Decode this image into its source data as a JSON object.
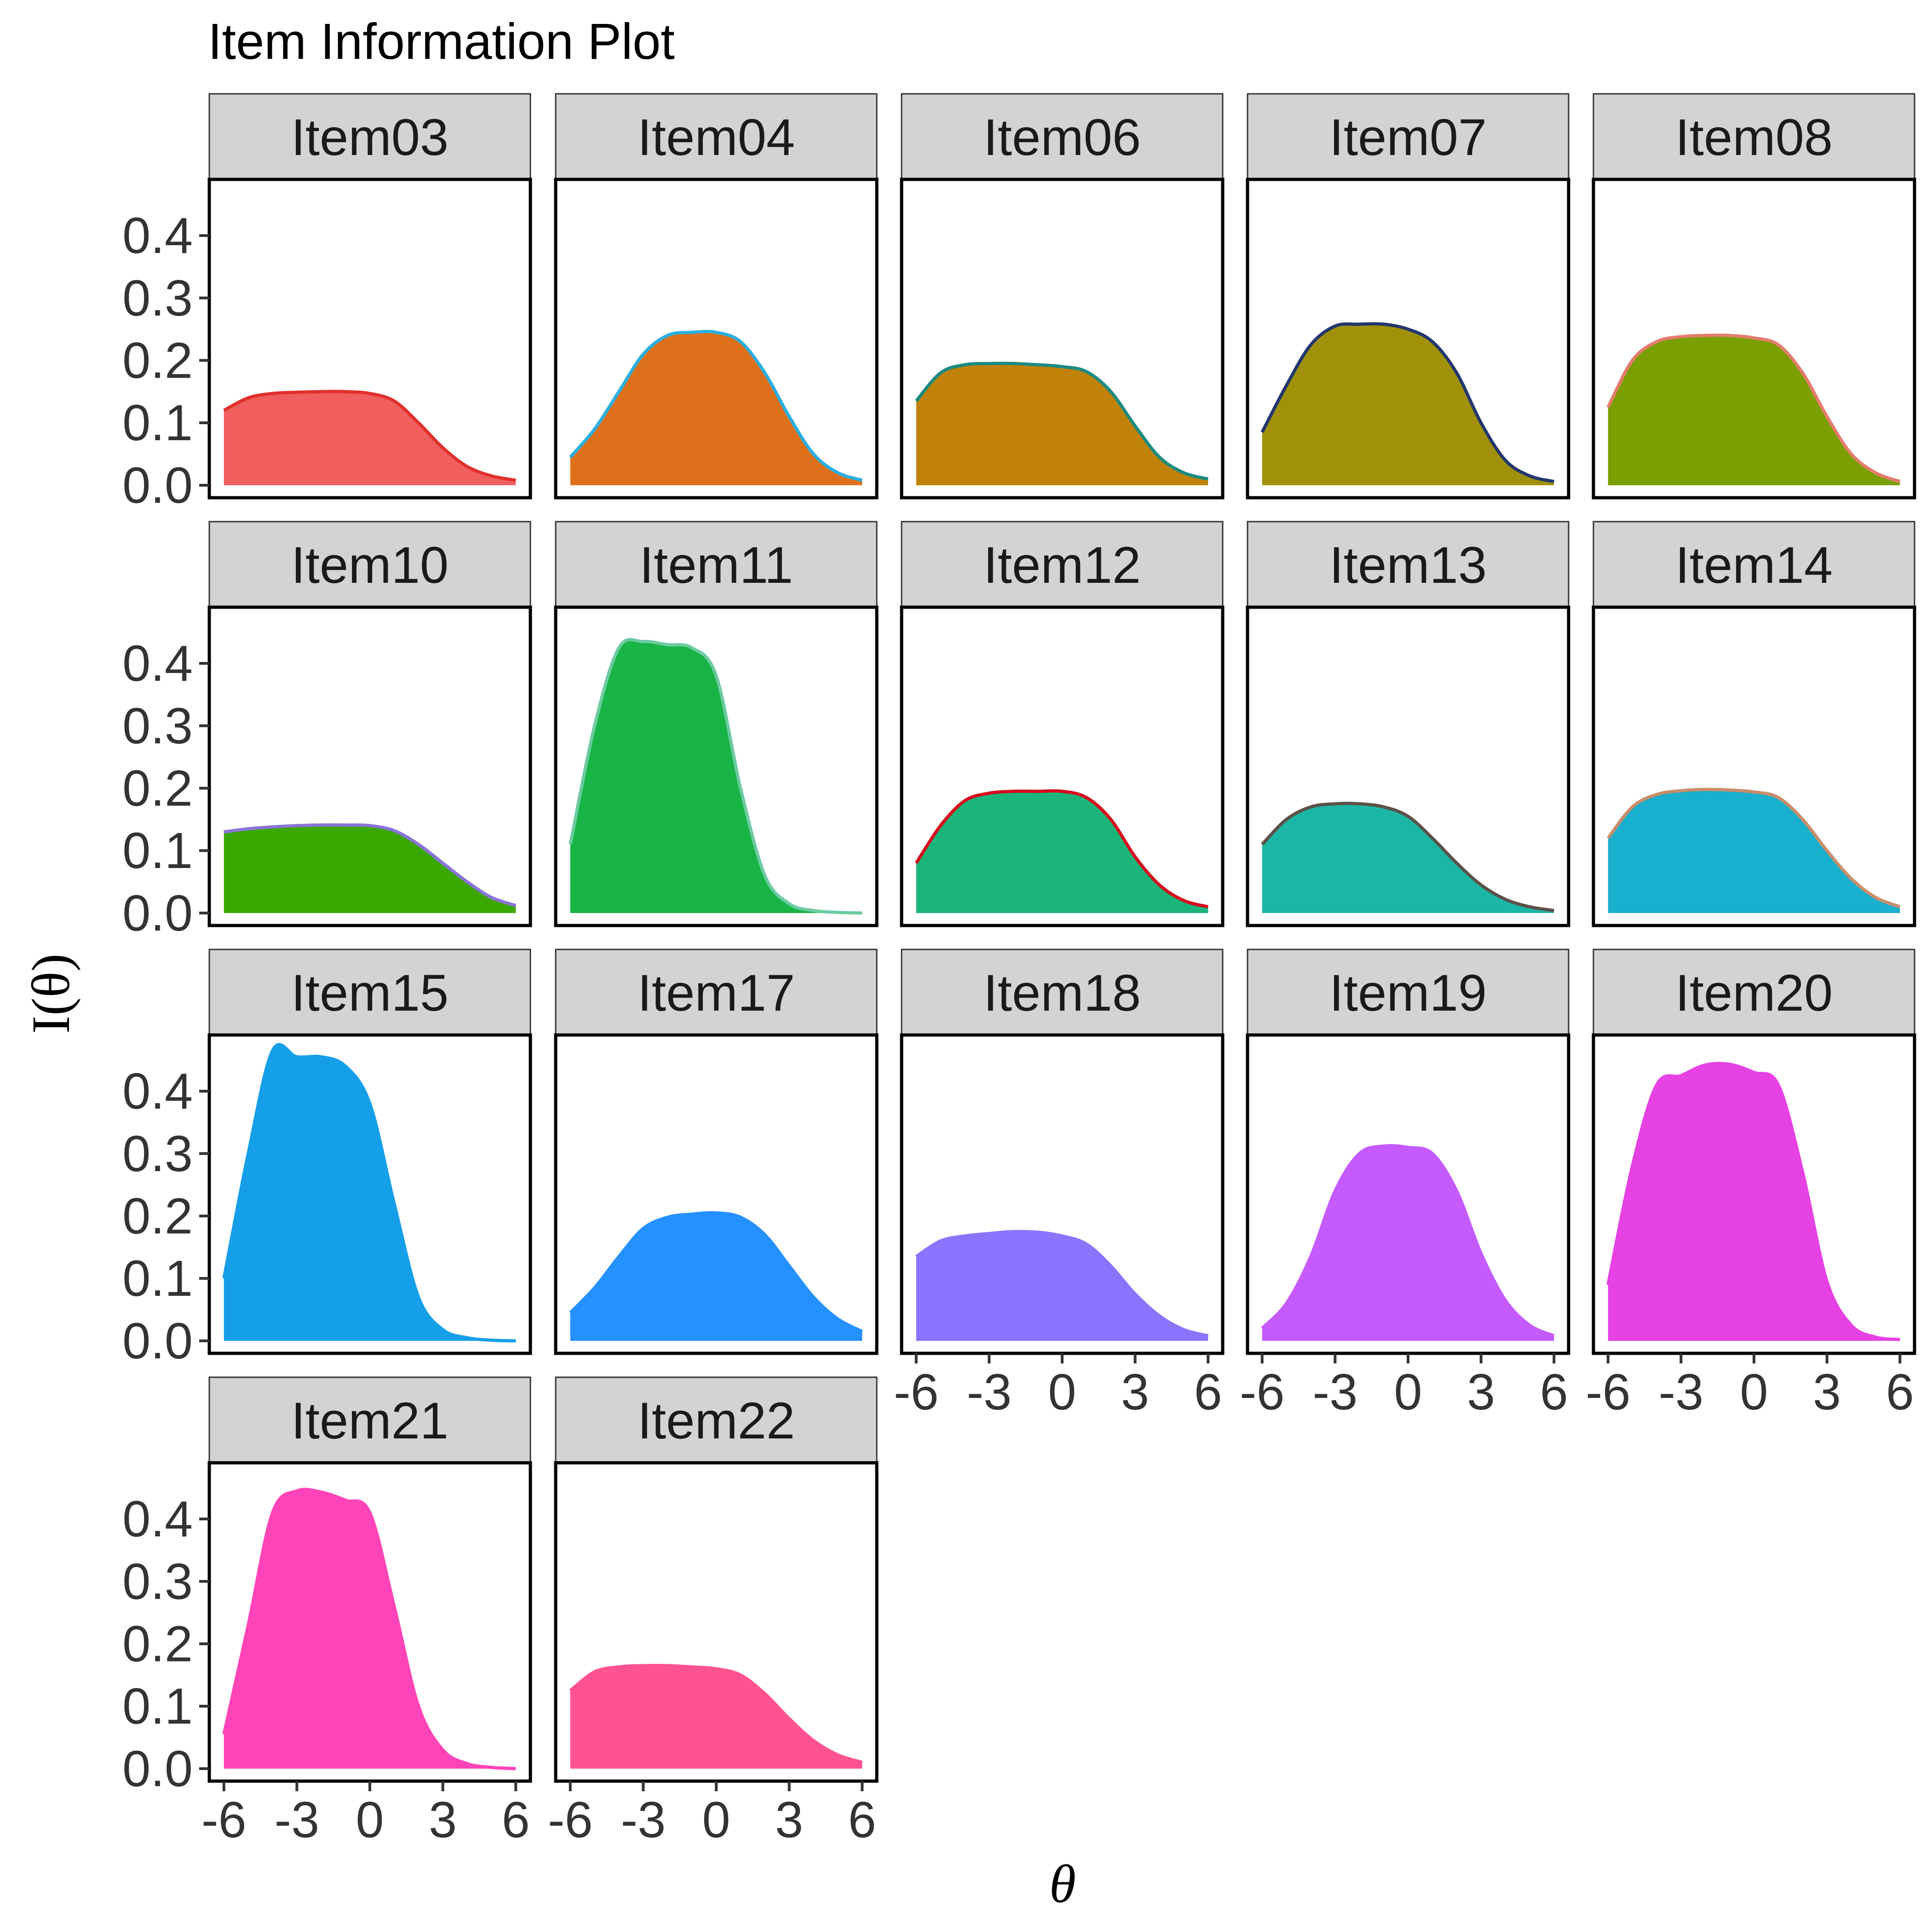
{
  "chart_data": {
    "type": "area",
    "title": "Item Information Plot",
    "xlabel": "θ",
    "ylabel": "I(θ)",
    "x_ticks": [
      -6,
      -3,
      0,
      3,
      6
    ],
    "x_tick_labels": [
      "-6",
      "-3",
      "0",
      "3",
      "6"
    ],
    "y_ticks": [
      0.0,
      0.1,
      0.2,
      0.3,
      0.4
    ],
    "y_tick_labels": [
      "0.0",
      "0.1",
      "0.2",
      "0.3",
      "0.4"
    ],
    "xlim": [
      -6.6,
      6.6
    ],
    "ylim": [
      -0.02,
      0.49
    ],
    "grid": false,
    "legend": "none",
    "facet_layout": {
      "rows": 4,
      "cols": 5
    },
    "x": [
      -6,
      -5,
      -4,
      -3,
      -2,
      -1,
      0,
      1,
      2,
      3,
      4,
      5,
      6
    ],
    "panels": [
      {
        "name": "Item03",
        "fill": "#F05E5E",
        "line": "#E0302C",
        "values": [
          0.12,
          0.14,
          0.147,
          0.149,
          0.15,
          0.15,
          0.147,
          0.135,
          0.1,
          0.06,
          0.03,
          0.015,
          0.008
        ]
      },
      {
        "name": "Item04",
        "fill": "#DE701C",
        "line": "#2AB0E0",
        "values": [
          0.045,
          0.09,
          0.15,
          0.21,
          0.24,
          0.245,
          0.245,
          0.23,
          0.18,
          0.11,
          0.05,
          0.02,
          0.008
        ]
      },
      {
        "name": "Item06",
        "fill": "#C08208",
        "line": "#1A8A82",
        "values": [
          0.135,
          0.18,
          0.193,
          0.195,
          0.195,
          0.193,
          0.19,
          0.182,
          0.15,
          0.095,
          0.045,
          0.02,
          0.01
        ]
      },
      {
        "name": "Item07",
        "fill": "#A09108",
        "line": "#23376E",
        "values": [
          0.085,
          0.16,
          0.225,
          0.255,
          0.258,
          0.258,
          0.25,
          0.23,
          0.18,
          0.1,
          0.04,
          0.015,
          0.006
        ]
      },
      {
        "name": "Item08",
        "fill": "#7A9F00",
        "line": "#E47C6C",
        "values": [
          0.125,
          0.2,
          0.23,
          0.238,
          0.24,
          0.24,
          0.236,
          0.225,
          0.18,
          0.11,
          0.05,
          0.02,
          0.006
        ]
      },
      {
        "name": "Item10",
        "fill": "#3BA801",
        "line": "#8B73D8",
        "values": [
          0.13,
          0.135,
          0.138,
          0.14,
          0.141,
          0.141,
          0.14,
          0.132,
          0.11,
          0.08,
          0.05,
          0.025,
          0.012
        ]
      },
      {
        "name": "Item11",
        "fill": "#18B445",
        "line": "#6DCBA2",
        "values": [
          0.11,
          0.3,
          0.425,
          0.435,
          0.43,
          0.425,
          0.38,
          0.2,
          0.06,
          0.015,
          0.004,
          0.001,
          0.0
        ]
      },
      {
        "name": "Item12",
        "fill": "#1BB57B",
        "line": "#D6081C",
        "values": [
          0.08,
          0.14,
          0.18,
          0.192,
          0.195,
          0.195,
          0.195,
          0.185,
          0.15,
          0.09,
          0.045,
          0.02,
          0.01
        ]
      },
      {
        "name": "Item13",
        "fill": "#1BB7A6",
        "line": "#5C5148",
        "values": [
          0.11,
          0.15,
          0.17,
          0.175,
          0.175,
          0.17,
          0.155,
          0.12,
          0.08,
          0.045,
          0.022,
          0.01,
          0.004
        ]
      },
      {
        "name": "Item14",
        "fill": "#19AFCF",
        "line": "#C88E6A",
        "values": [
          0.12,
          0.17,
          0.19,
          0.196,
          0.198,
          0.197,
          0.194,
          0.185,
          0.15,
          0.1,
          0.055,
          0.025,
          0.01
        ]
      },
      {
        "name": "Item15",
        "fill": "#159FE9",
        "line": "#159FE9",
        "values": [
          0.1,
          0.3,
          0.465,
          0.455,
          0.455,
          0.44,
          0.38,
          0.22,
          0.07,
          0.018,
          0.005,
          0.001,
          0.0
        ]
      },
      {
        "name": "Item17",
        "fill": "#2590FF",
        "line": "#2590FF",
        "values": [
          0.045,
          0.085,
          0.135,
          0.18,
          0.198,
          0.203,
          0.205,
          0.198,
          0.17,
          0.12,
          0.07,
          0.035,
          0.015
        ]
      },
      {
        "name": "Item18",
        "fill": "#8874FD",
        "line": "#8874FD",
        "values": [
          0.135,
          0.16,
          0.168,
          0.172,
          0.175,
          0.174,
          0.168,
          0.155,
          0.12,
          0.075,
          0.04,
          0.018,
          0.008
        ]
      },
      {
        "name": "Item19",
        "fill": "#C55AFE",
        "line": "#C55AFE",
        "values": [
          0.02,
          0.06,
          0.135,
          0.24,
          0.3,
          0.312,
          0.31,
          0.3,
          0.24,
          0.14,
          0.065,
          0.025,
          0.008
        ]
      },
      {
        "name": "Item20",
        "fill": "#E541E3",
        "line": "#E541E3",
        "values": [
          0.09,
          0.28,
          0.41,
          0.425,
          0.442,
          0.443,
          0.43,
          0.41,
          0.27,
          0.095,
          0.025,
          0.006,
          0.002
        ]
      },
      {
        "name": "Item21",
        "fill": "#FF43B8",
        "line": "#FF43B8",
        "values": [
          0.055,
          0.23,
          0.41,
          0.445,
          0.443,
          0.43,
          0.41,
          0.26,
          0.1,
          0.03,
          0.008,
          0.002,
          0.0
        ]
      },
      {
        "name": "Item22",
        "fill": "#FF5290",
        "line": "#FF5290",
        "values": [
          0.125,
          0.155,
          0.163,
          0.165,
          0.165,
          0.163,
          0.16,
          0.15,
          0.12,
          0.08,
          0.045,
          0.022,
          0.01
        ]
      }
    ]
  }
}
